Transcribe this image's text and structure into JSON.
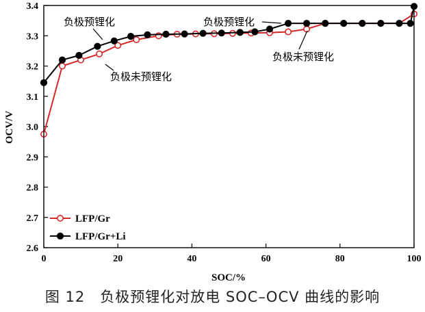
{
  "figure_caption": "图 12　负极预锂化对放电 SOC–OCV 曲线的影响",
  "chart_data": {
    "type": "line",
    "title": "",
    "xlabel": "SOC/%",
    "ylabel": "OCV/V",
    "xlim": [
      0,
      100
    ],
    "ylim": [
      2.6,
      3.4
    ],
    "xticks": [
      0,
      20,
      40,
      60,
      80,
      100
    ],
    "yticks": [
      2.6,
      2.7,
      2.8,
      2.9,
      3.0,
      3.1,
      3.2,
      3.3,
      3.4
    ],
    "xtick_labels": [
      "0",
      "20",
      "40",
      "60",
      "80",
      "100"
    ],
    "ytick_labels": [
      "2.6",
      "2.7",
      "2.8",
      "2.9",
      "3.0",
      "3.1",
      "3.2",
      "3.3",
      "3.4"
    ],
    "legend_position": "bottom-left",
    "series": [
      {
        "name": "LFP/Gr",
        "color": "#d62728",
        "marker": "open-circle",
        "x": [
          0,
          5,
          10,
          15,
          20,
          25,
          31,
          36,
          41,
          46,
          51,
          56,
          61,
          66,
          71,
          76,
          81,
          86,
          91,
          96,
          100
        ],
        "y": [
          2.975,
          3.2,
          3.22,
          3.24,
          3.268,
          3.287,
          3.3,
          3.305,
          3.306,
          3.307,
          3.308,
          3.309,
          3.31,
          3.313,
          3.322,
          3.341,
          3.341,
          3.341,
          3.341,
          3.341,
          3.372
        ]
      },
      {
        "name": "LFP/Gr+Li",
        "color": "#000000",
        "marker": "filled-circle",
        "x": [
          0,
          5,
          9.5,
          14.5,
          19,
          23.5,
          28,
          33,
          38,
          43,
          48,
          53,
          57,
          61,
          66,
          71,
          76,
          81,
          86,
          91,
          96,
          99,
          100
        ],
        "y": [
          3.145,
          3.22,
          3.235,
          3.265,
          3.283,
          3.298,
          3.303,
          3.305,
          3.306,
          3.308,
          3.309,
          3.311,
          3.313,
          3.322,
          3.341,
          3.341,
          3.341,
          3.341,
          3.341,
          3.341,
          3.341,
          3.341,
          3.397
        ]
      }
    ],
    "annotations": [
      {
        "text": "负极预锂化",
        "series": "LFP/Gr+Li"
      },
      {
        "text": "负极未预锂化",
        "series": "LFP/Gr"
      },
      {
        "text": "负极预锂化",
        "series": "LFP/Gr+Li"
      },
      {
        "text": "负极未预锂化",
        "series": "LFP/Gr"
      }
    ]
  }
}
